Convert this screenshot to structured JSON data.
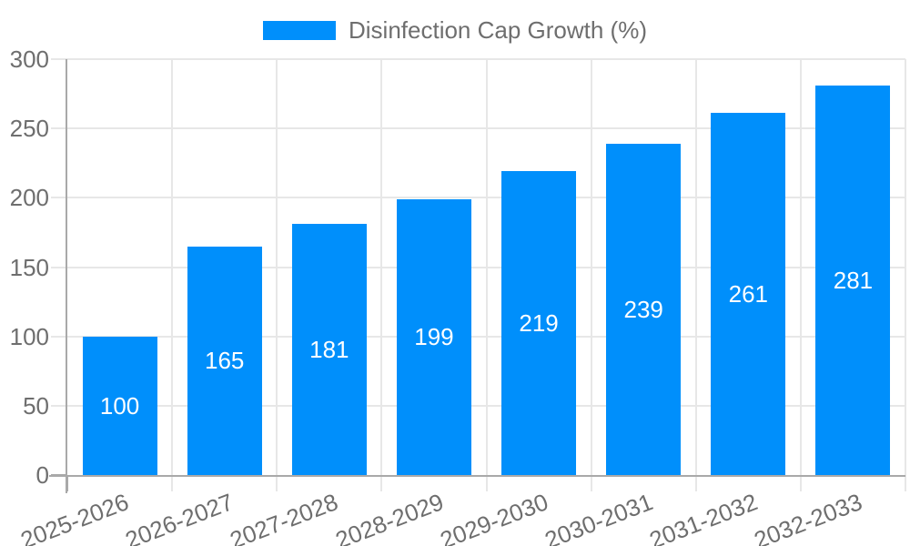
{
  "legend": {
    "label": "Disinfection Cap Growth (%)"
  },
  "chart_data": {
    "type": "bar",
    "title": "Disinfection Cap Growth (%)",
    "categories": [
      "2025-2026",
      "2026-2027",
      "2027-2028",
      "2028-2029",
      "2029-2030",
      "2030-2031",
      "2031-2032",
      "2032-2033"
    ],
    "values": [
      100,
      165,
      181,
      199,
      219,
      239,
      261,
      281
    ],
    "xlabel": "",
    "ylabel": "",
    "ylim": [
      0,
      300
    ],
    "yticks": [
      0,
      50,
      100,
      150,
      200,
      250,
      300
    ],
    "grid": true,
    "legend_position": "top-center",
    "value_label_position": "inside-center"
  },
  "colors": {
    "bar": "#008FFB",
    "value_label": "#FFFFFF",
    "tick_text": "#6E6E6E",
    "legend_text": "#6E6E6E",
    "gridline": "#E7E7E7",
    "axis_line": "#A9A9A9",
    "background": "#FFFFFF"
  }
}
